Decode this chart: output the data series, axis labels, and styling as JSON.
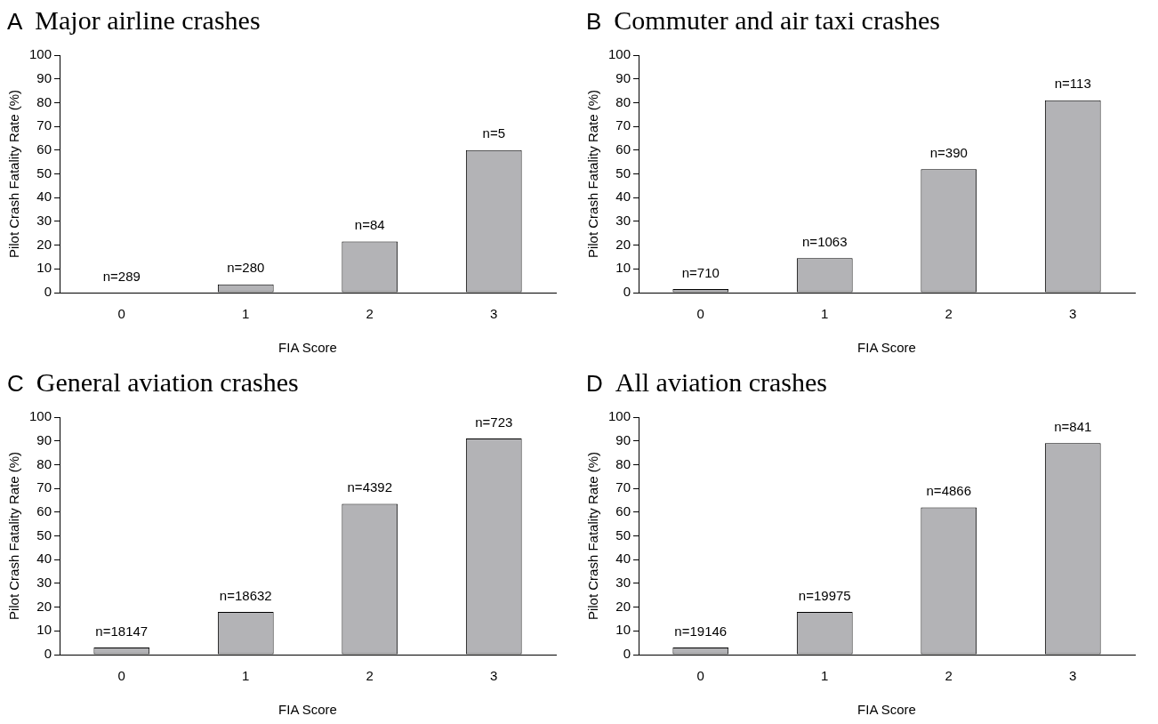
{
  "chart_data": [
    {
      "type": "bar",
      "title": "A  Major airline crashes",
      "xlabel": "FIA Score",
      "ylabel": "Pilot Crash Fatality Rate (%)",
      "categories": [
        "0",
        "1",
        "2",
        "3"
      ],
      "values": [
        0,
        3.5,
        21.5,
        60
      ],
      "annotations": [
        {
          "text": "n=289",
          "x": "0",
          "y": 0
        },
        {
          "text": "n=280",
          "x": "1",
          "y": 3.5
        },
        {
          "text": "n=84",
          "x": "2",
          "y": 21.5
        },
        {
          "text": "n=5",
          "x": "3",
          "y": 60
        }
      ],
      "color": "#b3b3b6",
      "ylim": [
        0,
        100
      ],
      "yticks": [
        0,
        10,
        20,
        30,
        40,
        50,
        60,
        70,
        80,
        90,
        100
      ],
      "grid": false,
      "legend": false
    },
    {
      "type": "bar",
      "title": "B  Commuter and air taxi crashes",
      "xlabel": "FIA Score",
      "ylabel": "Pilot Crash Fatality Rate (%)",
      "categories": [
        "0",
        "1",
        "2",
        "3"
      ],
      "values": [
        1.5,
        14.5,
        52,
        81
      ],
      "annotations": [
        {
          "text": "n=710",
          "x": "0",
          "y": 1.5
        },
        {
          "text": "n=1063",
          "x": "1",
          "y": 14.5
        },
        {
          "text": "n=390",
          "x": "2",
          "y": 52
        },
        {
          "text": "n=113",
          "x": "3",
          "y": 81
        }
      ],
      "color": "#b3b3b6",
      "ylim": [
        0,
        100
      ],
      "yticks": [
        0,
        10,
        20,
        30,
        40,
        50,
        60,
        70,
        80,
        90,
        100
      ],
      "grid": false,
      "legend": false
    },
    {
      "type": "bar",
      "title": "C  General aviation crashes",
      "xlabel": "FIA Score",
      "ylabel": "Pilot Crash Fatality Rate (%)",
      "categories": [
        "0",
        "1",
        "2",
        "3"
      ],
      "values": [
        3,
        18,
        63.5,
        91
      ],
      "annotations": [
        {
          "text": "n=18147",
          "x": "0",
          "y": 3
        },
        {
          "text": "n=18632",
          "x": "1",
          "y": 18
        },
        {
          "text": "n=4392",
          "x": "2",
          "y": 63.5
        },
        {
          "text": "n=723",
          "x": "3",
          "y": 91
        }
      ],
      "color": "#b3b3b6",
      "ylim": [
        0,
        100
      ],
      "yticks": [
        0,
        10,
        20,
        30,
        40,
        50,
        60,
        70,
        80,
        90,
        100
      ],
      "grid": false,
      "legend": false
    },
    {
      "type": "bar",
      "title": "D  All aviation crashes",
      "xlabel": "FIA Score",
      "ylabel": "Pilot Crash Fatality Rate (%)",
      "categories": [
        "0",
        "1",
        "2",
        "3"
      ],
      "values": [
        3,
        18,
        62,
        89
      ],
      "annotations": [
        {
          "text": "n=19146",
          "x": "0",
          "y": 3
        },
        {
          "text": "n=19975",
          "x": "1",
          "y": 18
        },
        {
          "text": "n=4866",
          "x": "2",
          "y": 62
        },
        {
          "text": "n=841",
          "x": "3",
          "y": 89
        }
      ],
      "color": "#b3b3b6",
      "ylim": [
        0,
        100
      ],
      "yticks": [
        0,
        10,
        20,
        30,
        40,
        50,
        60,
        70,
        80,
        90,
        100
      ],
      "grid": false,
      "legend": false
    }
  ]
}
